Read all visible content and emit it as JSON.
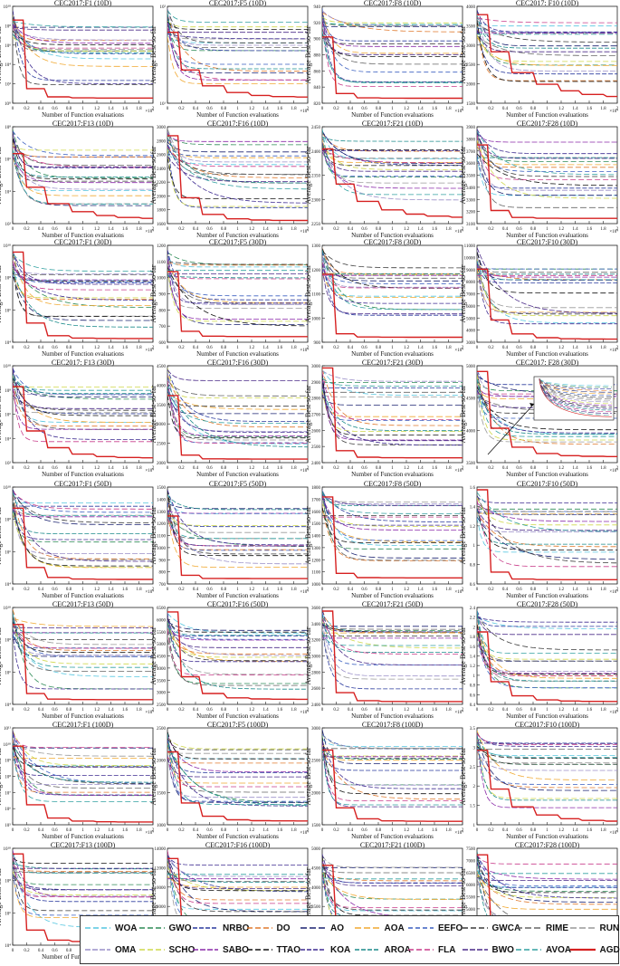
{
  "chart_data": {
    "type": "line",
    "ylabel": "Average  Best-so-far",
    "xlabel": "Number of  Function evaluations",
    "x_ticks": [
      "0",
      "0.2",
      "0.4",
      "0.6",
      "0.8",
      "1",
      "1.2",
      "1.4",
      "1.6",
      "1.8",
      "2"
    ],
    "x_exponent": "×10⁴",
    "panels": [
      {
        "title": "CEC2017:F1 (10D)",
        "yticks": [
          "10⁰",
          "10²",
          "10⁴",
          "10⁶",
          "10⁸",
          "10¹⁰"
        ],
        "log": true
      },
      {
        "title": "CEC2017:F5 (10D)",
        "yticks": [
          "10¹",
          "10²"
        ],
        "log": true
      },
      {
        "title": "CEC2017:F8 (10D)",
        "yticks": [
          "820",
          "840",
          "860",
          "880",
          "900",
          "920",
          "940"
        ],
        "log": false
      },
      {
        "title": "CEC2017: F10 (10D)",
        "yticks": [
          "1500",
          "2000",
          "2500",
          "3000",
          "3500",
          "4000"
        ],
        "log": false
      },
      {
        "title": "CEC2017:F13 (10D)",
        "yticks": [
          "10²",
          "10⁴",
          "10⁶",
          "10⁸"
        ],
        "log": true
      },
      {
        "title": "CEC2017:F16 (10D)",
        "yticks": [
          "1600",
          "1800",
          "2000",
          "2200",
          "2400",
          "2600",
          "2800",
          "3000"
        ],
        "log": false
      },
      {
        "title": "CEC2017:F21 (10D)",
        "yticks": [
          "2250",
          "2300",
          "2350",
          "2400",
          "2450"
        ],
        "log": false
      },
      {
        "title": "CEC2017:F28 (10D)",
        "yticks": [
          "3100",
          "3200",
          "3300",
          "3400",
          "3500",
          "3600",
          "3700",
          "3800",
          "3900"
        ],
        "log": false
      },
      {
        "title": "CEC2017:F1 (30D)",
        "yticks": [
          "10⁴",
          "10⁶",
          "10⁸",
          "10¹⁰"
        ],
        "log": true
      },
      {
        "title": "CEC2017:F5 (30D)",
        "yticks": [
          "600",
          "700",
          "800",
          "900",
          "1000",
          "1100",
          "1200"
        ],
        "log": false
      },
      {
        "title": "CEC2017:F8 (30D)",
        "yticks": [
          "900",
          "1000",
          "1100",
          "1200",
          "1300"
        ],
        "log": false
      },
      {
        "title": "CEC2017:F10 (30D)",
        "yticks": [
          "3000",
          "4000",
          "5000",
          "6000",
          "7000",
          "8000",
          "9000",
          "10000",
          "11000"
        ],
        "log": false
      },
      {
        "title": "CEC2017: F13 (30D)",
        "yticks": [
          "10²",
          "10⁴",
          "10⁶",
          "10⁸",
          "10¹⁰"
        ],
        "log": true
      },
      {
        "title": "CEC2017:F16 (30D)",
        "yticks": [
          "2000",
          "2500",
          "3000",
          "3500",
          "4000",
          "4500"
        ],
        "log": false
      },
      {
        "title": "CEC2017:F21 (30D)",
        "yticks": [
          "2400",
          "2500",
          "2600",
          "2700",
          "2800",
          "2900",
          "3000"
        ],
        "log": false
      },
      {
        "title": "CEC2017: F28 (30D)",
        "yticks": [
          "3500",
          "4000",
          "4500",
          "5000"
        ],
        "log": false
      },
      {
        "title": "CEC2017:F1 (50D)",
        "yticks": [
          "10⁴",
          "10⁶",
          "10⁸",
          "10¹⁰"
        ],
        "log": true
      },
      {
        "title": "CEC2017:F5 (50D)",
        "yticks": [
          "700",
          "800",
          "900",
          "1000",
          "1100",
          "1200",
          "1300",
          "1400",
          "1500"
        ],
        "log": false
      },
      {
        "title": "CEC2017:F8 (50D)",
        "yticks": [
          "1000",
          "1100",
          "1200",
          "1300",
          "1400",
          "1500",
          "1600",
          "1700",
          "1800"
        ],
        "log": false
      },
      {
        "title": "CEC2017:F10 (50D)",
        "yticks": [
          "0.6",
          "0.8",
          "1",
          "1.2",
          "1.4",
          "1.6"
        ],
        "log": false
      },
      {
        "title": "CEC2017:F13 (50D)",
        "yticks": [
          "10⁴",
          "10⁶",
          "10⁸",
          "10¹⁰"
        ],
        "log": true
      },
      {
        "title": "CEC2017:F16 (50D)",
        "yticks": [
          "2500",
          "3000",
          "3500",
          "4000",
          "4500",
          "5000",
          "5500",
          "6000",
          "6500"
        ],
        "log": false
      },
      {
        "title": "CEC2017:F21 (50D)",
        "yticks": [
          "2400",
          "2600",
          "2800",
          "3000",
          "3200",
          "3400",
          "3600"
        ],
        "log": false
      },
      {
        "title": "CEC2017:F28 (50D)",
        "yticks": [
          "0.4",
          "0.6",
          "0.8",
          "1",
          "1.2",
          "1.4",
          "1.6",
          "1.8",
          "2",
          "2.2",
          "2.4"
        ],
        "log": false
      },
      {
        "title": "CEC2017:F1 (100D)",
        "yticks": [
          "10⁵",
          "10⁶",
          "10⁷",
          "10⁸",
          "10⁹",
          "10¹⁰",
          "10¹¹"
        ],
        "log": true
      },
      {
        "title": "CEC2017:F5 (100D)",
        "yticks": [
          "1000",
          "1500",
          "2000",
          "2500"
        ],
        "log": false
      },
      {
        "title": "CEC2017:F8 (100D)",
        "yticks": [
          "1500",
          "2000",
          "2500",
          "3000"
        ],
        "log": false
      },
      {
        "title": "CEC2017:F10 (100D)",
        "yticks": [
          "1",
          "1.5",
          "2",
          "2.5",
          "3",
          "3.5"
        ],
        "log": false
      },
      {
        "title": "CEC2017:F13 (100D)",
        "yticks": [
          "10⁴",
          "10⁶",
          "10⁸",
          "10¹⁰"
        ],
        "log": true
      },
      {
        "title": "CEC2017:F16 (100D)",
        "yticks": [
          "4000",
          "6000",
          "8000",
          "10000",
          "12000",
          "14000"
        ],
        "log": false
      },
      {
        "title": "CEC2017:F21 (100D)",
        "yticks": [
          "2500",
          "3000",
          "3500",
          "4000",
          "4500",
          "5000"
        ],
        "log": false
      },
      {
        "title": "CEC2017:F28 (100D)",
        "yticks": [
          "3500",
          "4000",
          "4500",
          "5000",
          "5500",
          "6000",
          "6500",
          "7000",
          "7500"
        ],
        "log": false
      }
    ],
    "series": [
      {
        "name": "WOA",
        "color": "#55c6e0",
        "dash": "6,3"
      },
      {
        "name": "GWO",
        "color": "#2e8b57",
        "dash": "6,3"
      },
      {
        "name": "NRBO",
        "color": "#2a3a9e",
        "dash": "5,2"
      },
      {
        "name": "DO",
        "color": "#e07a2e",
        "dash": "6,3"
      },
      {
        "name": "AO",
        "color": "#1a2270",
        "dash": "7,3"
      },
      {
        "name": "AOA",
        "color": "#f0a830",
        "dash": "7,3"
      },
      {
        "name": "EEFO",
        "color": "#3a5fc0",
        "dash": "5,3"
      },
      {
        "name": "GWCA",
        "color": "#3b3b3b",
        "dash": "6,3"
      },
      {
        "name": "RIME",
        "color": "#666666",
        "dash": "7,3"
      },
      {
        "name": "RUN",
        "color": "#999999",
        "dash": "7,3"
      },
      {
        "name": "OMA",
        "color": "#9a8fc8",
        "dash": "6,2"
      },
      {
        "name": "SCHO",
        "color": "#cfd84a",
        "dash": "6,3"
      },
      {
        "name": "SABO",
        "color": "#8a2aa8",
        "dash": "6,2"
      },
      {
        "name": "TTAO",
        "color": "#111111",
        "dash": "6,3"
      },
      {
        "name": "KOA",
        "color": "#3d2a90",
        "dash": "5,2"
      },
      {
        "name": "AROA",
        "color": "#1a8a8a",
        "dash": "5,2"
      },
      {
        "name": "FLA",
        "color": "#c83c8a",
        "dash": "6,3"
      },
      {
        "name": "BWO",
        "color": "#4a2a88",
        "dash": "6,2"
      },
      {
        "name": "AVOA",
        "color": "#30a0a0",
        "dash": "6,3"
      },
      {
        "name": "AGDO",
        "color": "#d62020",
        "dash": ""
      }
    ]
  }
}
